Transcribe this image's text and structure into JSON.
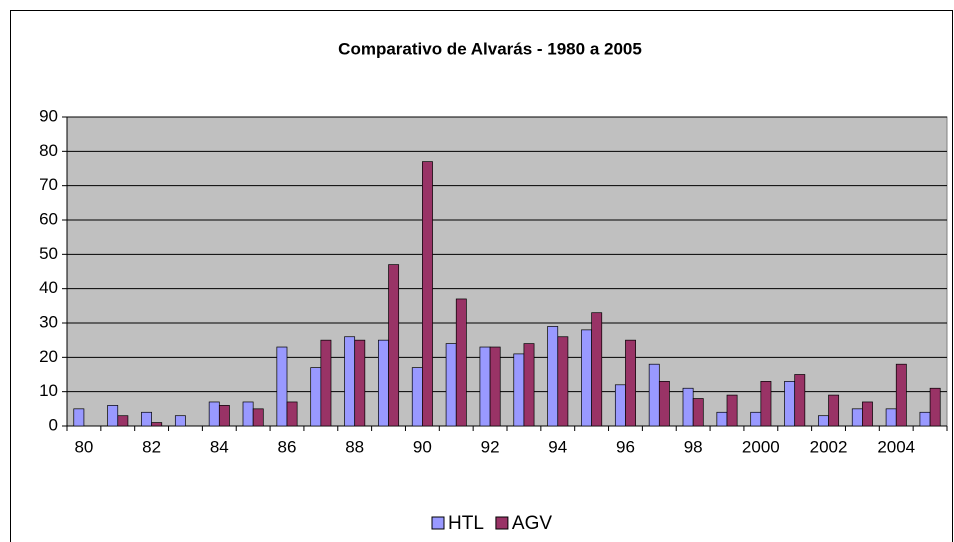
{
  "chart_data": {
    "type": "bar",
    "title": "Comparativo de Alvarás - 1980 a 2005",
    "categories": [
      "80",
      null,
      "82",
      null,
      "84",
      null,
      "86",
      null,
      "88",
      null,
      "90",
      null,
      "92",
      null,
      "94",
      null,
      "96",
      null,
      "98",
      null,
      "2000",
      null,
      "2002",
      null,
      "2004",
      null
    ],
    "series": [
      {
        "name": "HTL",
        "color": "#9999ff",
        "values": [
          5,
          6,
          4,
          3,
          7,
          7,
          23,
          17,
          26,
          25,
          17,
          24,
          23,
          21,
          29,
          28,
          12,
          18,
          11,
          4,
          4,
          13,
          3,
          5,
          5,
          4
        ]
      },
      {
        "name": "AGV",
        "color": "#993366",
        "values": [
          0,
          3,
          1,
          0,
          6,
          5,
          7,
          25,
          25,
          47,
          77,
          37,
          23,
          24,
          26,
          33,
          25,
          13,
          8,
          9,
          13,
          15,
          9,
          7,
          18,
          11
        ]
      }
    ],
    "ylim": [
      0,
      90
    ],
    "yticks": [
      0,
      10,
      20,
      30,
      40,
      50,
      60,
      70,
      80,
      90
    ],
    "grid": true,
    "legend": "bottom",
    "plot_background": "#c0c0c0"
  }
}
